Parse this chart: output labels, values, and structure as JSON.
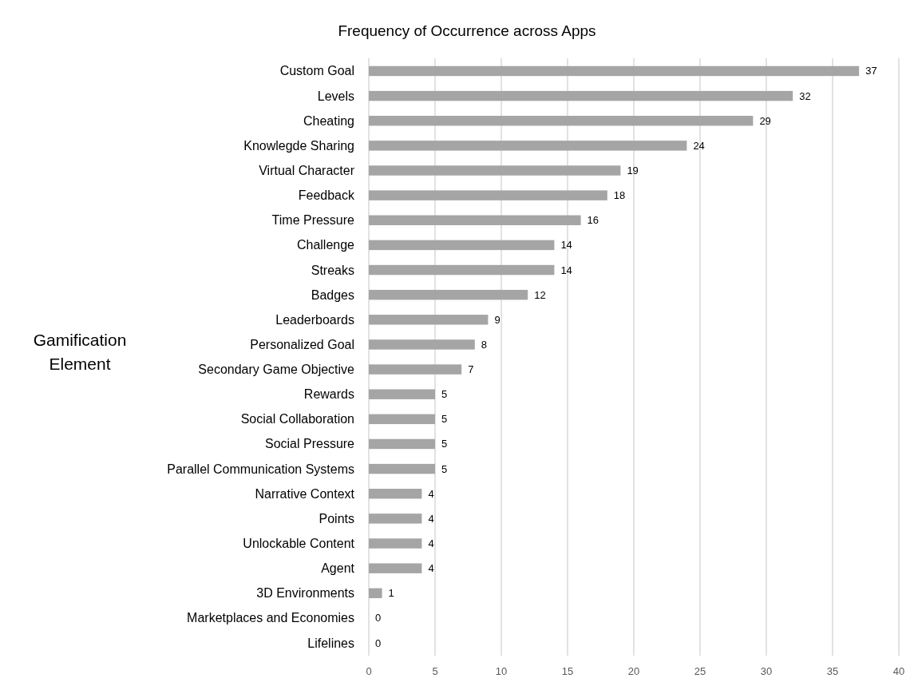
{
  "chart_data": {
    "type": "bar",
    "orientation": "horizontal",
    "title": "Frequency of Occurrence across Apps",
    "ylabel": "Gamification Element",
    "categories": [
      "Custom Goal",
      "Levels",
      "Cheating",
      "Knowlegde Sharing",
      "Virtual Character",
      "Feedback",
      "Time Pressure",
      "Challenge",
      "Streaks",
      "Badges",
      "Leaderboards",
      "Personalized Goal",
      "Secondary Game Objective",
      "Rewards",
      "Social Collaboration",
      "Social Pressure",
      "Parallel Communication Systems",
      "Narrative Context",
      "Points",
      "Unlockable Content",
      "Agent",
      "3D Environments",
      "Marketplaces and Economies",
      "Lifelines"
    ],
    "values": [
      37,
      32,
      29,
      24,
      19,
      18,
      16,
      14,
      14,
      12,
      9,
      8,
      7,
      5,
      5,
      5,
      5,
      4,
      4,
      4,
      4,
      1,
      0,
      0
    ],
    "color": "#a5a5a5",
    "xlim": [
      0,
      40
    ],
    "xticks": [
      0,
      5,
      10,
      15,
      20,
      25,
      30,
      35,
      40
    ],
    "grid": "x",
    "data_labels": true
  }
}
